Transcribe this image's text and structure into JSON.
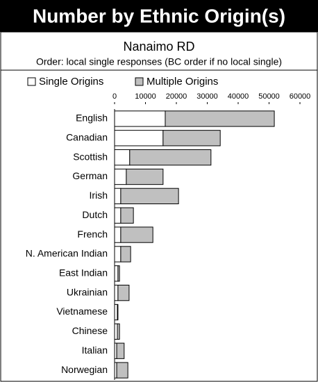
{
  "chart_data": {
    "type": "stacked-barh",
    "title": "Number by Ethnic Origin(s)",
    "subtitle": "Nanaimo RD",
    "note": "Order: local single responses (BC order if no local single)",
    "categories": [
      "English",
      "Canadian",
      "Scottish",
      "German",
      "Irish",
      "Dutch",
      "French",
      "N. American Indian",
      "East Indian",
      "Ukrainian",
      "Vietnamese",
      "Chinese",
      "Italian",
      "Norwegian"
    ],
    "series": [
      {
        "name": "Single Origins",
        "color": "#ffffff",
        "values": [
          16400,
          15700,
          4900,
          3800,
          2000,
          2000,
          2000,
          2000,
          1100,
          1100,
          900,
          900,
          700,
          700
        ]
      },
      {
        "name": "Multiple Origins",
        "color": "#c0c0c0",
        "values": [
          35300,
          18500,
          26300,
          11900,
          18700,
          4100,
          10400,
          3200,
          500,
          3600,
          200,
          700,
          2400,
          3600
        ]
      }
    ],
    "xlim": [
      0,
      60000
    ],
    "xticks": [
      0,
      10000,
      20000,
      30000,
      40000,
      50000,
      60000
    ],
    "legend": "top"
  }
}
